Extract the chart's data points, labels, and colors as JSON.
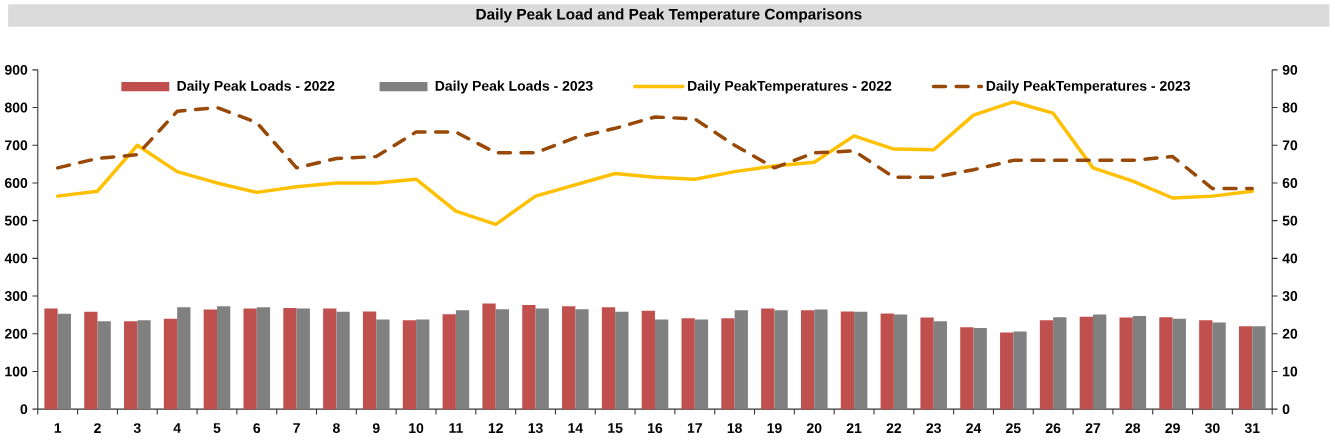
{
  "chart_data": {
    "type": "bar",
    "title": "Daily Peak Load and Peak Temperature Comparisons",
    "categories": [
      "1",
      "2",
      "3",
      "4",
      "5",
      "6",
      "7",
      "8",
      "9",
      "10",
      "11",
      "12",
      "13",
      "14",
      "15",
      "16",
      "17",
      "18",
      "19",
      "20",
      "21",
      "22",
      "23",
      "24",
      "25",
      "26",
      "27",
      "28",
      "29",
      "30",
      "31"
    ],
    "series": [
      {
        "name": "Daily Peak Loads - 2022",
        "color": "#c0504d",
        "values": [
          267,
          258,
          233,
          240,
          264,
          267,
          268,
          267,
          259,
          236,
          252,
          280,
          276,
          273,
          270,
          261,
          241,
          241,
          267,
          262,
          259,
          254,
          243,
          217,
          203,
          236,
          245,
          243,
          244,
          236,
          220
        ]
      },
      {
        "name": "Daily Peak Loads - 2023",
        "color": "#808080",
        "values": [
          253,
          233,
          236,
          270,
          273,
          270,
          267,
          258,
          238,
          238,
          262,
          265,
          267,
          265,
          258,
          238,
          238,
          262,
          262,
          264,
          258,
          251,
          233,
          215,
          206,
          244,
          251,
          247,
          240,
          230,
          220
        ]
      },
      {
        "name": "Daily PeakTemperatures - 2022",
        "type": "line",
        "axis": "y2",
        "line_style": "solid",
        "color": "#ffc000",
        "values": [
          56.5,
          57.8,
          70,
          63,
          60,
          57.5,
          59,
          60,
          60,
          61,
          52.5,
          49,
          56.5,
          59.5,
          62.5,
          61.5,
          61,
          63,
          64.5,
          65.5,
          72.5,
          69,
          68.8,
          78,
          81.5,
          78.5,
          64,
          60.5,
          56,
          56.5,
          57.8
        ]
      },
      {
        "name": "Daily PeakTemperatures - 2023",
        "type": "line",
        "axis": "y2",
        "line_style": "dashed",
        "color": "#984807",
        "values": [
          64,
          66.5,
          67.5,
          79,
          80,
          76,
          64,
          66.5,
          67,
          73.5,
          73.5,
          68,
          68,
          72,
          74.5,
          77.5,
          77,
          70,
          64,
          68,
          68.5,
          61.5,
          61.5,
          63.5,
          66,
          66,
          66,
          66,
          67,
          58.5,
          58.5
        ]
      }
    ],
    "ylim": [
      0,
      900
    ],
    "yticks": [
      0,
      100,
      200,
      300,
      400,
      500,
      600,
      700,
      800,
      900
    ],
    "y2lim": [
      0,
      90
    ],
    "y2ticks": [
      0,
      10,
      20,
      30,
      40,
      50,
      60,
      70,
      80,
      90
    ],
    "legend": "top"
  }
}
